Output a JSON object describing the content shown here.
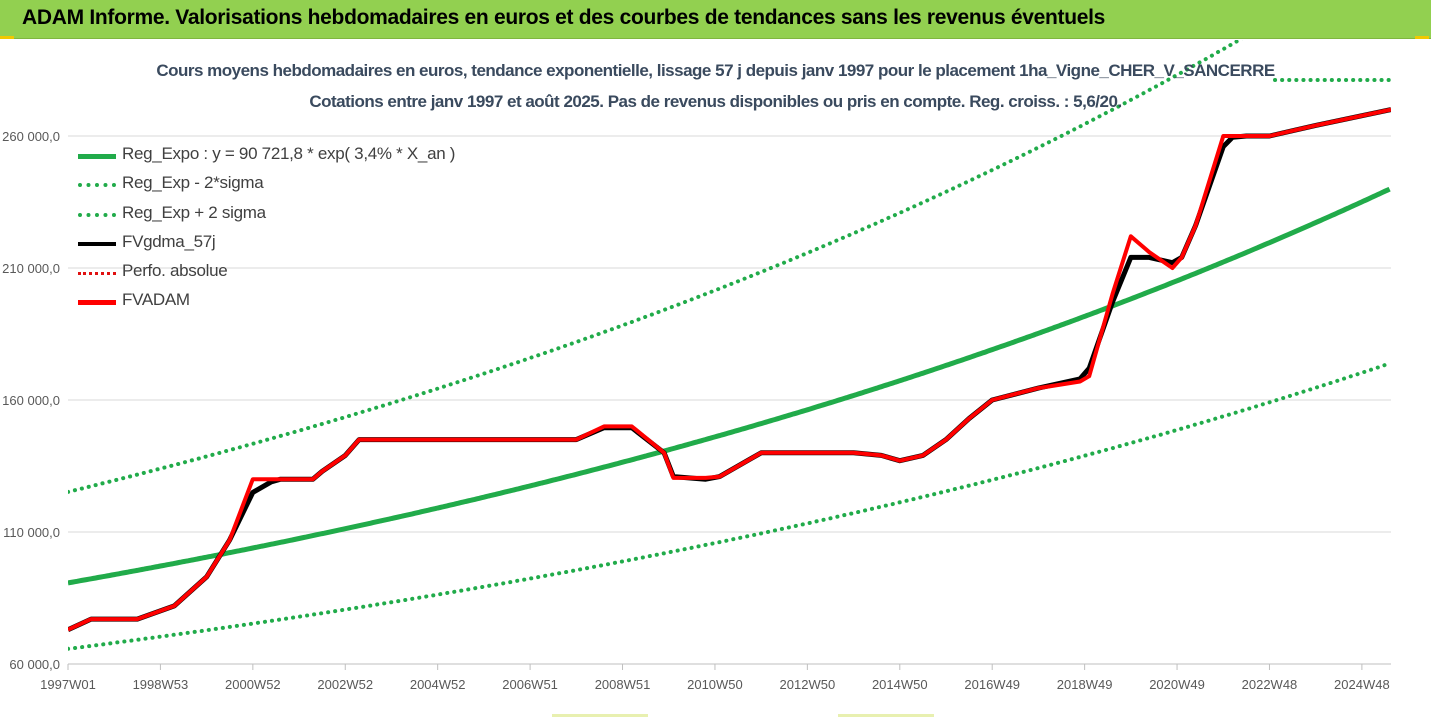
{
  "header": {
    "title": "ADAM Informe. Valorisations hebdomadaires en euros et des courbes de tendances sans les revenus éventuels"
  },
  "chart_data": {
    "type": "line",
    "title": "Cours moyens hebdomadaires en euros, tendance exponentielle, lissage 57 j depuis janv 1997 pour le placement 1ha_Vigne_CHER_V_SANCERRE",
    "subtitle": "Cotations entre janv 1997 et août 2025.  Pas de revenus disponibles ou pris en compte. Reg. croiss. : 5,6/20.",
    "xlabel": "",
    "ylabel": "",
    "x_range": [
      1997.0,
      2025.63
    ],
    "ylim": [
      60000,
      285000
    ],
    "y_ticks": [
      60000,
      110000,
      160000,
      210000,
      260000
    ],
    "y_tick_labels": [
      "60 000,0",
      "110 000,0",
      "160 000,0",
      "210 000,0",
      "260 000,0"
    ],
    "x_tick_labels": [
      "1997W01",
      "1998W53",
      "2000W52",
      "2002W52",
      "2004W52",
      "2006W51",
      "2008W51",
      "2010W50",
      "2012W50",
      "2014W50",
      "2016W49",
      "2018W49",
      "2020W49",
      "2022W48",
      "2024W48"
    ],
    "x_tick_values": [
      1997.0,
      1999.0,
      2001.0,
      2003.0,
      2005.0,
      2007.0,
      2009.0,
      2011.0,
      2013.0,
      2015.0,
      2017.0,
      2019.0,
      2021.0,
      2023.0,
      2025.0
    ],
    "grid": "horizontal",
    "legend_position": "top-left",
    "regression": {
      "a": 90721.8,
      "rate": 0.034,
      "sigma_factor": 1.38
    },
    "series": [
      {
        "name": "Reg_Expo : y = 90 721,8 * exp( 3,4% *  X_an )",
        "kind": "expo",
        "color": "#21ab4a",
        "style": "solid"
      },
      {
        "name": "Reg_Exp - 2*sigma",
        "kind": "expo_low",
        "color": "#21ab4a",
        "style": "dotted"
      },
      {
        "name": "Reg_Exp + 2 sigma",
        "kind": "expo_high",
        "color": "#21ab4a",
        "style": "dotted"
      },
      {
        "name": "FVgdma_57j",
        "kind": "data",
        "color": "#000000",
        "style": "solid",
        "x": [
          1997.0,
          1997.5,
          1998.5,
          1999.3,
          2000.0,
          2000.5,
          2001.0,
          2001.4,
          2001.6,
          2002.3,
          2002.5,
          2003.0,
          2003.3,
          2004.0,
          2006.0,
          2007.0,
          2008.0,
          2008.6,
          2009.2,
          2009.9,
          2010.1,
          2010.8,
          2011.1,
          2011.8,
          2012.0,
          2014.0,
          2014.6,
          2015.0,
          2015.5,
          2016.0,
          2016.5,
          2017.0,
          2018.0,
          2018.9,
          2019.1,
          2019.6,
          2020.0,
          2020.4,
          2020.9,
          2021.1,
          2021.4,
          2022.0,
          2022.2,
          2022.5,
          2023.0,
          2024.0,
          2025.63
        ],
        "y": [
          73000,
          77000,
          77000,
          82000,
          93000,
          107000,
          125000,
          129000,
          130000,
          130000,
          133000,
          139000,
          145000,
          145000,
          145000,
          145000,
          145000,
          149500,
          149500,
          140000,
          131000,
          130000,
          131000,
          138000,
          140000,
          140000,
          139000,
          137000,
          139000,
          145000,
          153000,
          160000,
          164500,
          168000,
          172000,
          197000,
          214000,
          214000,
          212000,
          214000,
          226000,
          256000,
          259500,
          260000,
          260000,
          264000,
          270000
        ]
      },
      {
        "name": "Perfo. absolue",
        "kind": "none",
        "color": "#e01010",
        "style": "dotted"
      },
      {
        "name": "FVADAM",
        "kind": "data",
        "color": "#ff0000",
        "style": "solid",
        "x": [
          1997.0,
          1997.5,
          1998.5,
          1999.3,
          2000.0,
          2000.5,
          2001.0,
          2001.4,
          2001.6,
          2002.3,
          2002.5,
          2003.0,
          2003.3,
          2004.0,
          2006.0,
          2007.0,
          2008.0,
          2008.6,
          2009.2,
          2009.9,
          2010.1,
          2010.8,
          2011.1,
          2011.8,
          2012.0,
          2014.0,
          2014.6,
          2015.0,
          2015.5,
          2016.0,
          2016.5,
          2017.0,
          2018.0,
          2018.9,
          2019.1,
          2019.6,
          2020.0,
          2020.4,
          2020.9,
          2021.1,
          2021.4,
          2022.0,
          2022.2,
          2022.5,
          2023.0,
          2024.0,
          2025.63
        ],
        "y": [
          73000,
          77000,
          77000,
          82000,
          93000,
          107000,
          130000,
          130000,
          130000,
          130000,
          133000,
          139000,
          145000,
          145000,
          145000,
          145000,
          145000,
          150000,
          150000,
          140000,
          130500,
          130500,
          131000,
          138000,
          140000,
          140000,
          139000,
          137000,
          139000,
          145000,
          153000,
          160000,
          164500,
          167000,
          169000,
          200000,
          222000,
          216000,
          210000,
          214000,
          226000,
          260000,
          260000,
          260000,
          260000,
          264000,
          270000
        ]
      }
    ]
  }
}
